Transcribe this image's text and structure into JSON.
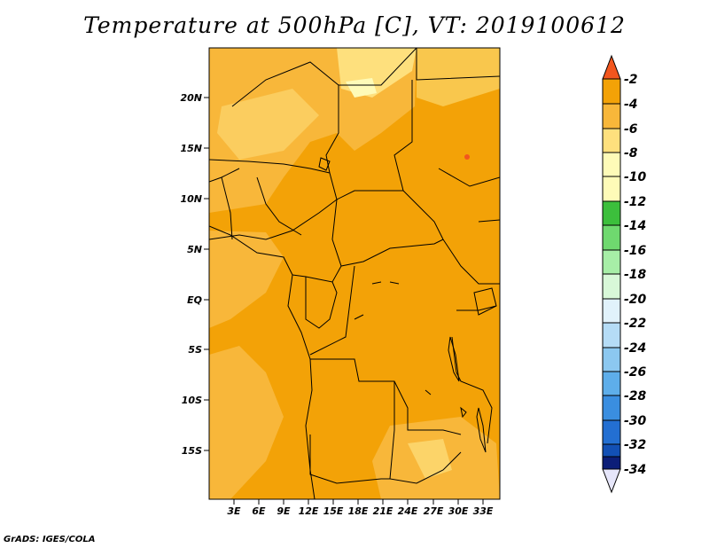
{
  "title": "Temperature at 500hPa [C], VT: 2019100612",
  "footer": "GrADS: IGES/COLA",
  "colors": {
    "c_m2": "#f2561e",
    "c_m4": "#f3a207",
    "c_m6": "#f8b73a",
    "c_m8": "#fee07d",
    "c_m10": "#fefbb8",
    "c_m12": "#3cbf3c",
    "c_m14": "#6fd96f",
    "c_m16": "#a7eea7",
    "c_m18": "#d8f8d8",
    "c_m20": "#e1f2fb",
    "c_m22": "#b5dcf6",
    "c_m24": "#8cc8f0",
    "c_m26": "#5eaeea",
    "c_m28": "#3a8ee0",
    "c_m30": "#236fd2",
    "c_m32": "#1250b5",
    "c_m34": "#0c1e78"
  },
  "map": {
    "lon_labels": [
      "3E",
      "6E",
      "9E",
      "12E",
      "15E",
      "18E",
      "21E",
      "24E",
      "27E",
      "30E",
      "33E"
    ],
    "lat_labels": [
      "20N",
      "15N",
      "10N",
      "5N",
      "EQ",
      "5S",
      "10S",
      "15S"
    ]
  },
  "colorbar": {
    "labels": [
      "-2",
      "-4",
      "-6",
      "-8",
      "-10",
      "-12",
      "-14",
      "-16",
      "-18",
      "-20",
      "-22",
      "-24",
      "-26",
      "-28",
      "-30",
      "-32",
      "-34"
    ]
  }
}
